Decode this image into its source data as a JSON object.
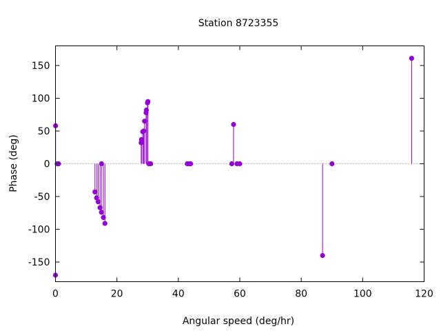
{
  "chart_data": {
    "type": "scatter",
    "style": "impulse",
    "title": "Station 8723355",
    "xlabel": "Angular speed (deg/hr)",
    "ylabel": "Phase (deg)",
    "xlim": [
      0,
      120
    ],
    "ylim": [
      -180,
      180
    ],
    "xticks": [
      0,
      20,
      40,
      60,
      80,
      100,
      120
    ],
    "yticks": [
      -150,
      -100,
      -50,
      0,
      50,
      100,
      150
    ],
    "grid": false,
    "zero_line": "dotted",
    "color": "#9400d3",
    "series": [
      {
        "points": [
          [
            0.0,
            -170
          ],
          [
            0.04,
            58
          ],
          [
            0.55,
            0
          ],
          [
            1.0,
            0
          ],
          [
            12.85,
            -43
          ],
          [
            13.4,
            -52
          ],
          [
            13.9,
            -58
          ],
          [
            14.5,
            -67
          ],
          [
            14.96,
            -74
          ],
          [
            15.0,
            0
          ],
          [
            15.6,
            -82
          ],
          [
            16.1,
            -91
          ],
          [
            27.9,
            32
          ],
          [
            28.0,
            37
          ],
          [
            28.4,
            49
          ],
          [
            28.7,
            50
          ],
          [
            29.0,
            65
          ],
          [
            29.5,
            78
          ],
          [
            29.6,
            82
          ],
          [
            29.95,
            93
          ],
          [
            30.1,
            95
          ],
          [
            30.4,
            0
          ],
          [
            31.0,
            0
          ],
          [
            42.9,
            0
          ],
          [
            43.5,
            0
          ],
          [
            44.0,
            0
          ],
          [
            57.4,
            0
          ],
          [
            57.97,
            60
          ],
          [
            59.1,
            0
          ],
          [
            60.0,
            0
          ],
          [
            86.95,
            -140
          ],
          [
            90.0,
            0
          ],
          [
            115.94,
            161
          ]
        ]
      }
    ]
  }
}
